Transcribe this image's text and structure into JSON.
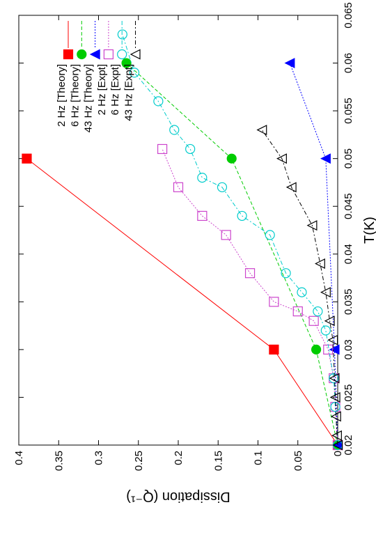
{
  "chart_data": {
    "type": "line",
    "orientation": "rotated-90-clockwise",
    "title": "",
    "xlabel": "T(K)",
    "ylabel": "Dissipation (Q⁻¹)",
    "xlim": [
      0.02,
      0.065
    ],
    "ylim": [
      0,
      0.4
    ],
    "xticks": [
      "0.02",
      "0.025",
      "0.03",
      "0.035",
      "0.04",
      "0.045",
      "0.05",
      "0.055",
      "0.06",
      "0.065"
    ],
    "yticks": [
      "0",
      "0.05",
      "0.1",
      "0.15",
      "0.2",
      "0.25",
      "0.3",
      "0.35",
      "0.4"
    ],
    "grid": false,
    "legend_position": "top-right",
    "series": [
      {
        "name": "2 Hz [Theory]",
        "color": "#ff0000",
        "marker": "square-filled",
        "line": "solid",
        "x": [
          0.02,
          0.03,
          0.05
        ],
        "y": [
          0.0,
          0.08,
          0.39
        ]
      },
      {
        "name": "6 Hz [Theory]",
        "color": "#00cc00",
        "marker": "circle-filled",
        "line": "dashed",
        "x": [
          0.02,
          0.03,
          0.05,
          0.06
        ],
        "y": [
          0.0,
          0.027,
          0.133,
          0.265
        ]
      },
      {
        "name": "43 Hz [Theory]",
        "color": "#0000ff",
        "marker": "triangle-filled",
        "line": "dotted",
        "x": [
          0.02,
          0.03,
          0.05,
          0.06
        ],
        "y": [
          0.0,
          0.004,
          0.015,
          0.06
        ]
      },
      {
        "name": "2 Hz [Expt]",
        "color": "#cc44cc",
        "marker": "square-open",
        "line": "dotted",
        "x": [
          0.02,
          0.024,
          0.027,
          0.03,
          0.033,
          0.034,
          0.035,
          0.038,
          0.042,
          0.044,
          0.047,
          0.051
        ],
        "y": [
          0.0,
          0.003,
          0.005,
          0.012,
          0.03,
          0.05,
          0.08,
          0.11,
          0.14,
          0.17,
          0.2,
          0.22
        ]
      },
      {
        "name": "6 Hz [Expt]",
        "color": "#00cccc",
        "marker": "circle-open",
        "line": "dash-dot",
        "x": [
          0.02,
          0.024,
          0.027,
          0.032,
          0.034,
          0.036,
          0.038,
          0.042,
          0.044,
          0.047,
          0.048,
          0.051,
          0.053,
          0.056,
          0.059,
          0.063
        ],
        "y": [
          0.0,
          0.003,
          0.005,
          0.015,
          0.025,
          0.045,
          0.065,
          0.085,
          0.12,
          0.145,
          0.17,
          0.185,
          0.205,
          0.225,
          0.255,
          0.27
        ]
      },
      {
        "name": "43 Hz [Expt]",
        "color": "#000000",
        "marker": "triangle-open",
        "line": "dash-dot",
        "x": [
          0.02,
          0.021,
          0.023,
          0.025,
          0.027,
          0.031,
          0.033,
          0.036,
          0.039,
          0.043,
          0.047,
          0.05,
          0.053
        ],
        "y": [
          0.0,
          0.001,
          0.002,
          0.003,
          0.004,
          0.006,
          0.01,
          0.015,
          0.022,
          0.032,
          0.058,
          0.07,
          0.095
        ]
      }
    ]
  }
}
